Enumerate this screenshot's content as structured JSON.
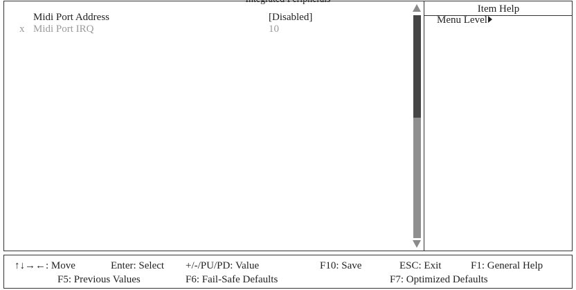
{
  "header": {
    "title": "Integrated Peripherals"
  },
  "menu": {
    "items": [
      {
        "mark": "",
        "label": "Midi Port Address",
        "value": "[Disabled]",
        "disabled": false
      },
      {
        "mark": "x",
        "label": "Midi Port IRQ",
        "value": "10",
        "disabled": true
      }
    ]
  },
  "scrollbar": {
    "thumb_fraction": 0.46,
    "position": 0.0
  },
  "help": {
    "title": "Item Help",
    "menu_level_label": "Menu Level"
  },
  "footer": {
    "row1": [
      "↑↓→←: Move",
      "Enter: Select",
      "+/-/PU/PD: Value",
      "F10: Save",
      "ESC: Exit",
      "F1: General Help"
    ],
    "row2": [
      "F5: Previous Values",
      "F6: Fail-Safe Defaults",
      "F7: Optimized Defaults"
    ]
  },
  "colors": {
    "text": "#222222",
    "disabled_text": "#9a9a9a",
    "scroll_track": "#8f8f8f",
    "scroll_thumb": "#454545"
  }
}
